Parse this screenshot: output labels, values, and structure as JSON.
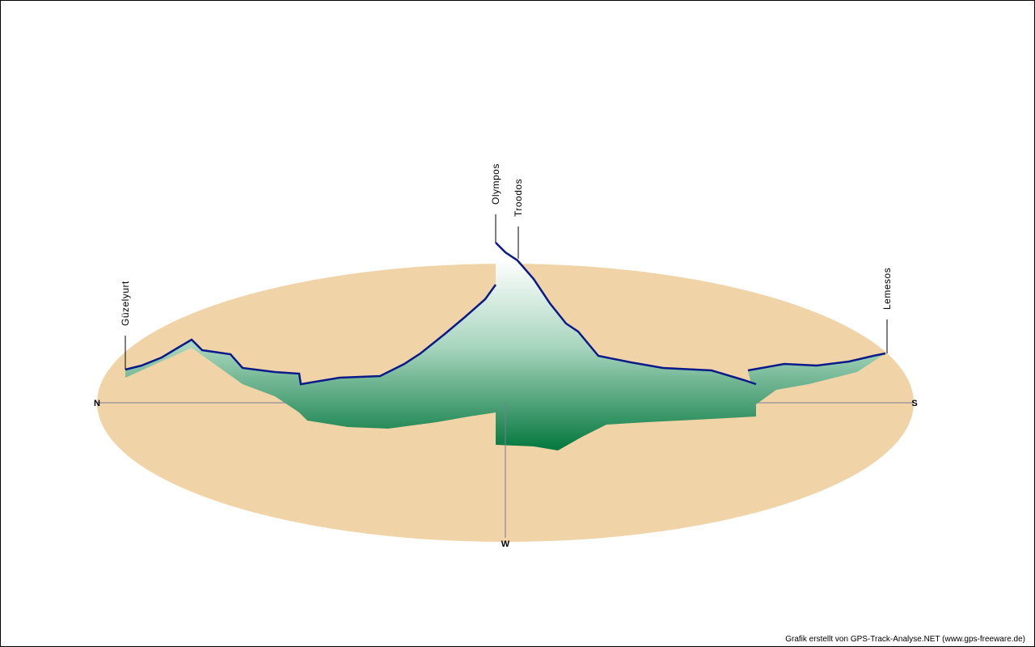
{
  "compass": {
    "north": "N",
    "south": "S",
    "west": "W"
  },
  "places": [
    {
      "label": "Güzelyurt"
    },
    {
      "label": "Olympos"
    },
    {
      "label": "Troodos"
    },
    {
      "label": "Lemesos"
    }
  ],
  "credit": "Grafik erstellt von GPS-Track-Analyse.NET (www.gps-freeware.de)"
}
